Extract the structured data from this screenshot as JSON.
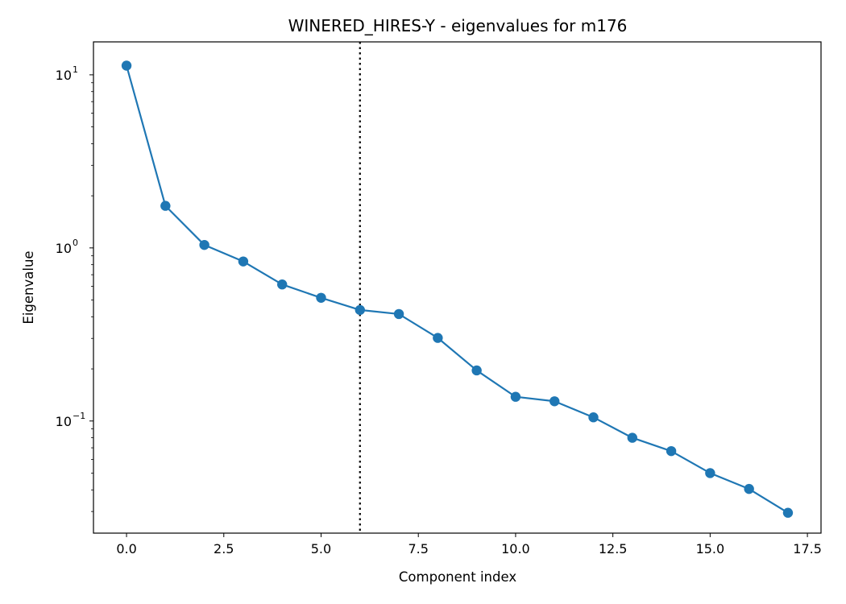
{
  "chart_data": {
    "type": "line",
    "title": "WINERED_HIRES-Y - eigenvalues for m176",
    "xlabel": "Component index",
    "ylabel": "Eigenvalue",
    "xlim": [
      -0.85,
      17.85
    ],
    "ylim": [
      0.0225,
      15.5
    ],
    "yscale": "log",
    "grid": false,
    "x_ticks": [
      0,
      2.5,
      5,
      7.5,
      10,
      12.5,
      15,
      17.5
    ],
    "x_tick_labels": [
      "0.0",
      "2.5",
      "5.0",
      "7.5",
      "10.0",
      "12.5",
      "15.0",
      "17.5"
    ],
    "y_ticks": [
      {
        "value": 0.1,
        "base": "10",
        "exp": "−1"
      },
      {
        "value": 1,
        "base": "10",
        "exp": "0"
      },
      {
        "value": 10,
        "base": "10",
        "exp": "1"
      }
    ],
    "marker_line": {
      "x": 6,
      "style": "dotted",
      "color": "#000000"
    },
    "series": [
      {
        "color": "#1f77b4",
        "x": [
          0,
          1,
          2,
          3,
          4,
          5,
          6,
          7,
          8,
          9,
          10,
          11,
          12,
          13,
          14,
          15,
          16,
          17
        ],
        "values": [
          11.3,
          1.75,
          1.04,
          0.835,
          0.615,
          0.515,
          0.438,
          0.415,
          0.302,
          0.196,
          0.138,
          0.13,
          0.105,
          0.08,
          0.067,
          0.05,
          0.0405,
          0.0295
        ]
      }
    ]
  }
}
